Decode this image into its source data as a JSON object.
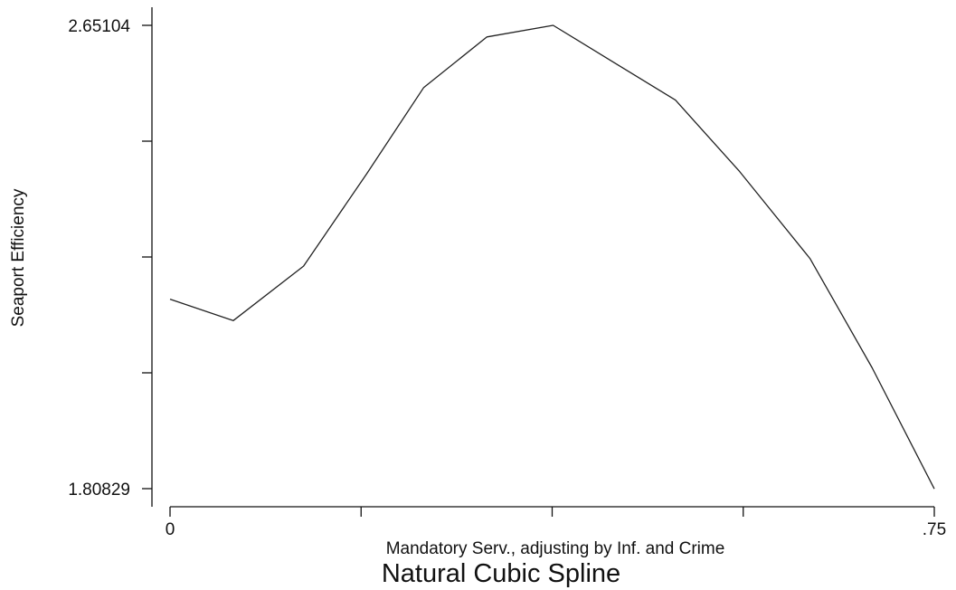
{
  "chart_data": {
    "type": "line",
    "title": "Natural Cubic Spline",
    "xlabel": "Mandatory Serv., adjusting by Inf. and Crime",
    "ylabel": "Seaport Efficiency",
    "xlim": [
      0,
      0.75
    ],
    "ylim": [
      1.80829,
      2.65104
    ],
    "x_ticks": [
      0,
      0.1875,
      0.375,
      0.5625,
      0.75
    ],
    "x_tick_labels": [
      "0",
      "",
      "",
      "",
      ".75"
    ],
    "y_ticks": [
      1.80829,
      2.01898,
      2.22967,
      2.44035,
      2.65104
    ],
    "y_tick_labels": [
      "1.80829",
      "",
      "",
      "",
      "2.65104"
    ],
    "grid": false,
    "series": [
      {
        "x": [
          0,
          0.062,
          0.131,
          0.193,
          0.249,
          0.311,
          0.376,
          0.436,
          0.496,
          0.559,
          0.628,
          0.689,
          0.75
        ],
        "y": [
          2.153,
          2.114,
          2.213,
          2.381,
          2.538,
          2.63,
          2.651,
          2.583,
          2.515,
          2.385,
          2.227,
          2.028,
          1.808
        ]
      }
    ]
  }
}
